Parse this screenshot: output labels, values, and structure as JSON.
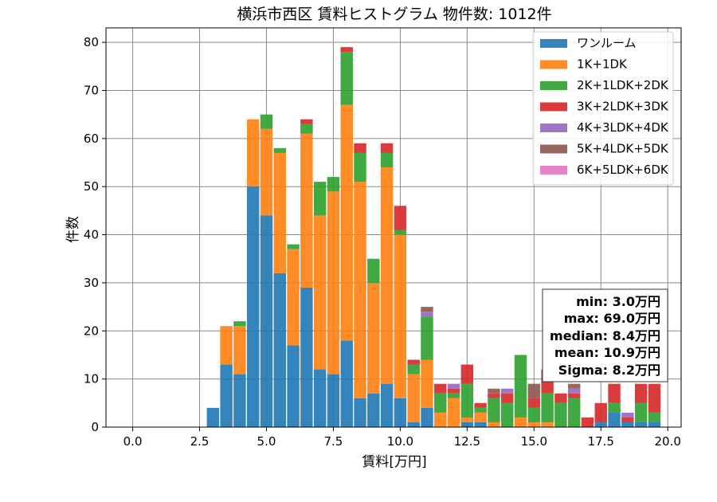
{
  "chart_data": {
    "type": "bar",
    "stacked": true,
    "title": "横浜市西区 賃料ヒストグラム 物件数: 1012件",
    "xlabel": "賃料[万円]",
    "ylabel": "件数",
    "xlim": [
      -1.0,
      20.5
    ],
    "ylim": [
      0,
      83
    ],
    "xticks": [
      0.0,
      2.5,
      5.0,
      7.5,
      10.0,
      12.5,
      15.0,
      17.5,
      20.0
    ],
    "xtick_labels": [
      "0.0",
      "2.5",
      "5.0",
      "7.5",
      "10.0",
      "12.5",
      "15.0",
      "17.5",
      "20.0"
    ],
    "yticks": [
      0,
      10,
      20,
      30,
      40,
      50,
      60,
      70,
      80
    ],
    "ytick_labels": [
      "0",
      "10",
      "20",
      "30",
      "40",
      "50",
      "60",
      "70",
      "80"
    ],
    "grid": true,
    "legend_position": "upper right",
    "bin_width": 0.5,
    "bin_left_edges": [
      2.75,
      3.25,
      3.75,
      4.25,
      4.75,
      5.25,
      5.75,
      6.25,
      6.75,
      7.25,
      7.75,
      8.25,
      8.75,
      9.25,
      9.75,
      10.25,
      10.75,
      11.25,
      11.75,
      12.25,
      12.75,
      13.25,
      13.75,
      14.25,
      14.75,
      15.25,
      15.75,
      16.25,
      16.75,
      17.25,
      17.75,
      18.25,
      18.75,
      19.25
    ],
    "series": [
      {
        "name": "ワンルーム",
        "color": "#1f77b4",
        "values": [
          4,
          13,
          11,
          50,
          44,
          32,
          17,
          29,
          12,
          11,
          18,
          6,
          7,
          9,
          6,
          1,
          4,
          0,
          0,
          1,
          1,
          0,
          0,
          0,
          0,
          0,
          0,
          0,
          0,
          1,
          3,
          1,
          1,
          1
        ]
      },
      {
        "name": "1K+1DK",
        "color": "#ff7f0e",
        "values": [
          0,
          8,
          10,
          14,
          18,
          25,
          20,
          32,
          32,
          38,
          49,
          45,
          23,
          45,
          34,
          10,
          10,
          3,
          6,
          1,
          2,
          1,
          0,
          2,
          1,
          1,
          0,
          0,
          0,
          0,
          0,
          0,
          0,
          0
        ]
      },
      {
        "name": "2K+1LDK+2DK",
        "color": "#2ca02c",
        "values": [
          0,
          0,
          1,
          0,
          3,
          1,
          1,
          2,
          7,
          3,
          11,
          6,
          5,
          3,
          1,
          2,
          9,
          4,
          1,
          7,
          1,
          5,
          5,
          13,
          3,
          6,
          5,
          6,
          0,
          0,
          2,
          0,
          4,
          2
        ]
      },
      {
        "name": "3K+2LDK+3DK",
        "color": "#d62728",
        "values": [
          0,
          0,
          0,
          0,
          0,
          0,
          0,
          1,
          0,
          0,
          1,
          2,
          0,
          2,
          5,
          1,
          0,
          2,
          1,
          4,
          1,
          1,
          2,
          0,
          2,
          3,
          2,
          1,
          2,
          4,
          4,
          1,
          4,
          6
        ]
      },
      {
        "name": "4K+3LDK+4DK",
        "color": "#9467bd",
        "values": [
          0,
          0,
          0,
          0,
          0,
          0,
          0,
          0,
          0,
          0,
          0,
          0,
          0,
          0,
          0,
          0,
          1,
          0,
          1,
          0,
          0,
          0,
          1,
          0,
          0,
          0,
          0,
          1,
          0,
          0,
          0,
          1,
          0,
          0
        ]
      },
      {
        "name": "5K+4LDK+5DK",
        "color": "#8c564b",
        "values": [
          0,
          0,
          0,
          0,
          0,
          0,
          0,
          0,
          0,
          0,
          0,
          0,
          0,
          0,
          0,
          0,
          1,
          0,
          0,
          0,
          0,
          1,
          0,
          0,
          3,
          2,
          0,
          1,
          0,
          0,
          0,
          0,
          0,
          0
        ]
      },
      {
        "name": "6K+5LDK+6DK",
        "color": "#e377c2",
        "values": [
          0,
          0,
          0,
          0,
          0,
          0,
          0,
          0,
          0,
          0,
          0,
          0,
          0,
          0,
          0,
          0,
          0,
          0,
          0,
          0,
          0,
          0,
          0,
          0,
          0,
          0,
          0,
          0,
          0,
          0,
          0,
          0,
          0,
          0
        ]
      }
    ],
    "annotation_lines": [
      "min: 3.0万円",
      "max: 69.0万円",
      "median: 8.4万円",
      "mean: 10.9万円",
      "Sigma: 8.2万円"
    ]
  }
}
